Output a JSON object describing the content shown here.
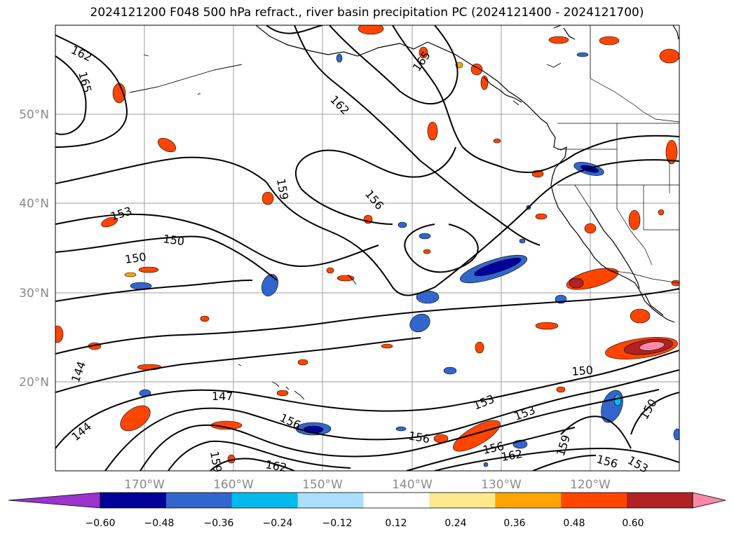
{
  "title": "2024121200 F048 500 hPa refract., river basin precipitation PC (2024121400 - 2024121700)",
  "map": {
    "extent": {
      "lon_min": -180,
      "lon_max": -110,
      "lat_min": 10,
      "lat_max": 60
    },
    "lat_ticks": [
      "20°N",
      "30°N",
      "40°N",
      "50°N"
    ],
    "lon_ticks": [
      "170°W",
      "160°W",
      "150°W",
      "140°W",
      "130°W",
      "120°W"
    ],
    "grid": true,
    "contour_labels": [
      "162",
      "165",
      "153",
      "150",
      "150",
      "159",
      "162",
      "156",
      "165",
      "144",
      "144",
      "147",
      "156",
      "159",
      "162",
      "156",
      "153",
      "153",
      "156",
      "162",
      "159",
      "150",
      "150",
      "156",
      "153"
    ]
  },
  "colorbar": {
    "ticks": [
      "−0.60",
      "−0.48",
      "−0.36",
      "−0.24",
      "−0.12",
      "0.12",
      "0.24",
      "0.36",
      "0.48",
      "0.60"
    ],
    "colors": [
      "#9933cc",
      "#000099",
      "#3366cc",
      "#00bbee",
      "#aadfff",
      "#ffffff",
      "#ffe98a",
      "#ffa500",
      "#ff4500",
      "#b22222",
      "#ff88aa"
    ]
  }
}
